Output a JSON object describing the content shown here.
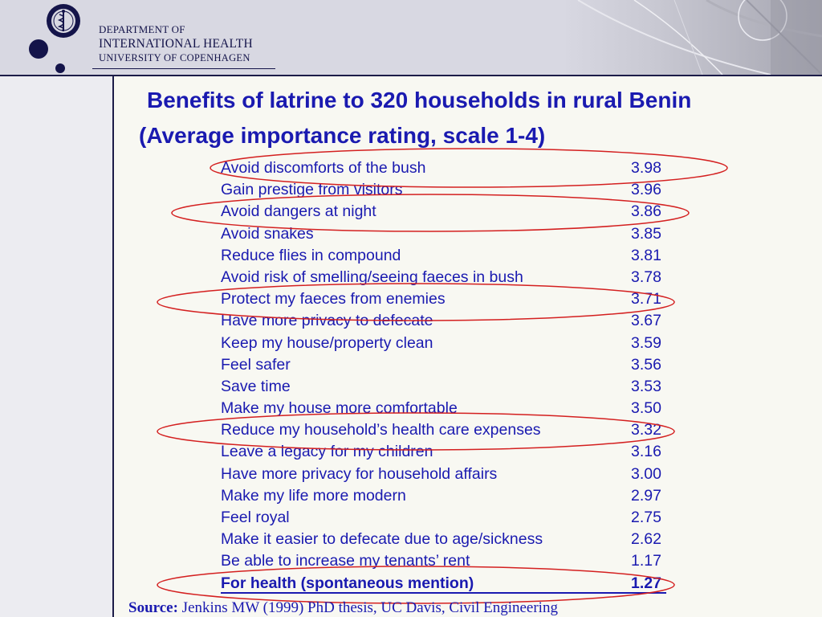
{
  "header": {
    "department_line1": "DEPARTMENT OF",
    "department_line2": "INTERNATIONAL HEALTH",
    "department_line3": "UNIVERSITY OF COPENHAGEN"
  },
  "slide": {
    "title_line1": "Benefits of latrine to 320 households in rural Benin",
    "title_line2": "(Average importance rating, scale 1-4)",
    "benefits": [
      {
        "label": "Avoid discomforts of the bush",
        "value": "3.98",
        "circled": true
      },
      {
        "label": "Gain prestige from visitors",
        "value": "3.96",
        "circled": false
      },
      {
        "label": "Avoid dangers at night",
        "value": "3.86",
        "circled": true
      },
      {
        "label": "Avoid snakes",
        "value": "3.85",
        "circled": false
      },
      {
        "label": "Reduce flies in compound",
        "value": "3.81",
        "circled": false
      },
      {
        "label": "Avoid risk of smelling/seeing faeces in bush",
        "value": "3.78",
        "circled": false
      },
      {
        "label": "Protect my faeces from enemies",
        "value": "3.71",
        "circled": true
      },
      {
        "label": "Have more privacy to defecate",
        "value": "3.67",
        "circled": false
      },
      {
        "label": "Keep my house/property clean",
        "value": "3.59",
        "circled": false
      },
      {
        "label": "Feel safer",
        "value": "3.56",
        "circled": false
      },
      {
        "label": "Save time",
        "value": "3.53",
        "circled": false
      },
      {
        "label": "Make my house more comfortable",
        "value": "3.50",
        "circled": false
      },
      {
        "label": "Reduce my household’s health care expenses",
        "value": "3.32",
        "circled": true
      },
      {
        "label": "Leave a legacy for my children",
        "value": "3.16",
        "circled": false
      },
      {
        "label": "Have more privacy for household affairs",
        "value": "3.00",
        "circled": false
      },
      {
        "label": "Make my life more modern",
        "value": "2.97",
        "circled": false
      },
      {
        "label": "Feel royal",
        "value": "2.75",
        "circled": false
      },
      {
        "label": "Make it easier to defecate due to age/sickness",
        "value": "2.62",
        "circled": false
      },
      {
        "label": "Be able to increase my tenants’ rent",
        "value": "1.17",
        "circled": false
      },
      {
        "label": "For health (spontaneous mention)",
        "value": "1.27",
        "circled": true,
        "emphasized": true
      }
    ],
    "source_label": "Source:",
    "source_text": "Jenkins MW (1999) PhD thesis, UC Davis, Civil Engineering"
  },
  "colors": {
    "text_blue": "#1a1ab0",
    "navy": "#14144a",
    "annotation_red": "#d42020",
    "slide_background": "#f8f8f2"
  }
}
